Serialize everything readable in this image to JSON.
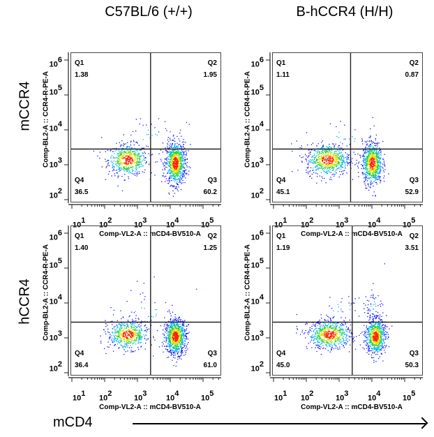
{
  "headers": {
    "columns": [
      "C57BL/6 (+/+)",
      "B-hCCR4 (H/H)"
    ],
    "rows": [
      "mCCR4",
      "hCCR4"
    ],
    "x_summary_label": "mCD4"
  },
  "chart_data": {
    "type": "scatter",
    "subtype": "flow-cytometry-pseudocolor-quadrant",
    "x_axis": {
      "label": "Comp-VL2-A :: mCD4-BV510-A",
      "scale": "log",
      "tick_base": "10",
      "tick_exponents": [
        "1",
        "2",
        "3",
        "4",
        "5"
      ]
    },
    "y_axis": {
      "label": "Comp-BL2-A :: CCR4-R-PE-A",
      "scale": "log",
      "tick_base": "10",
      "tick_exponents": [
        "6",
        "5",
        "4",
        "3",
        "2"
      ]
    },
    "panels": [
      {
        "column": "C57BL/6 (+/+)",
        "row": "mCCR4",
        "gate": {
          "x_log": 3.4,
          "y_log": 3.45
        },
        "quadrants": {
          "Q1": {
            "name": "Q1",
            "value": "1.38"
          },
          "Q2": {
            "name": "Q2",
            "value": "1.95"
          },
          "Q3": {
            "name": "Q3",
            "value": "60.2"
          },
          "Q4": {
            "name": "Q4",
            "value": "36.5"
          }
        },
        "populations": [
          {
            "cx": 2.7,
            "cy": 3.15,
            "sx": 0.3,
            "sy": 0.22,
            "share": 0.37
          },
          {
            "cx": 4.15,
            "cy": 3.05,
            "sx": 0.15,
            "sy": 0.3,
            "share": 0.6
          },
          {
            "cx": 3.3,
            "cy": 3.8,
            "sx": 0.6,
            "sy": 0.35,
            "share": 0.03
          }
        ]
      },
      {
        "column": "B-hCCR4 (H/H)",
        "row": "mCCR4",
        "gate": {
          "x_log": 3.35,
          "y_log": 3.45
        },
        "quadrants": {
          "Q1": {
            "name": "Q1",
            "value": "1.11"
          },
          "Q2": {
            "name": "Q2",
            "value": "0.87"
          },
          "Q3": {
            "name": "Q3",
            "value": "52.9"
          },
          "Q4": {
            "name": "Q4",
            "value": "45.1"
          }
        },
        "populations": [
          {
            "cx": 2.65,
            "cy": 3.15,
            "sx": 0.33,
            "sy": 0.22,
            "share": 0.46
          },
          {
            "cx": 4.0,
            "cy": 3.05,
            "sx": 0.15,
            "sy": 0.3,
            "share": 0.52
          },
          {
            "cx": 3.2,
            "cy": 3.8,
            "sx": 0.6,
            "sy": 0.35,
            "share": 0.02
          }
        ]
      },
      {
        "column": "C57BL/6 (+/+)",
        "row": "hCCR4",
        "gate": {
          "x_log": 3.4,
          "y_log": 3.45
        },
        "quadrants": {
          "Q1": {
            "name": "Q1",
            "value": "1.40"
          },
          "Q2": {
            "name": "Q2",
            "value": "1.25"
          },
          "Q3": {
            "name": "Q3",
            "value": "61.0"
          },
          "Q4": {
            "name": "Q4",
            "value": "36.4"
          }
        },
        "populations": [
          {
            "cx": 2.7,
            "cy": 3.1,
            "sx": 0.3,
            "sy": 0.2,
            "share": 0.37
          },
          {
            "cx": 4.15,
            "cy": 3.05,
            "sx": 0.16,
            "sy": 0.25,
            "share": 0.6
          },
          {
            "cx": 3.3,
            "cy": 3.8,
            "sx": 0.6,
            "sy": 0.35,
            "share": 0.03
          }
        ]
      },
      {
        "column": "B-hCCR4 (H/H)",
        "row": "hCCR4",
        "gate": {
          "x_log": 3.4,
          "y_log": 3.45
        },
        "quadrants": {
          "Q1": {
            "name": "Q1",
            "value": "1.19"
          },
          "Q2": {
            "name": "Q2",
            "value": "3.51"
          },
          "Q3": {
            "name": "Q3",
            "value": "50.3"
          },
          "Q4": {
            "name": "Q4",
            "value": "45.0"
          }
        },
        "populations": [
          {
            "cx": 2.7,
            "cy": 3.1,
            "sx": 0.33,
            "sy": 0.2,
            "share": 0.45
          },
          {
            "cx": 4.1,
            "cy": 3.05,
            "sx": 0.15,
            "sy": 0.25,
            "share": 0.48
          },
          {
            "cx": 4.05,
            "cy": 3.85,
            "sx": 0.17,
            "sy": 0.3,
            "share": 0.05
          },
          {
            "cx": 3.1,
            "cy": 3.8,
            "sx": 0.5,
            "sy": 0.3,
            "share": 0.02
          }
        ]
      }
    ],
    "density_colors": [
      "#1010ff",
      "#00b0ff",
      "#20d040",
      "#e0e000",
      "#ff2000"
    ]
  }
}
